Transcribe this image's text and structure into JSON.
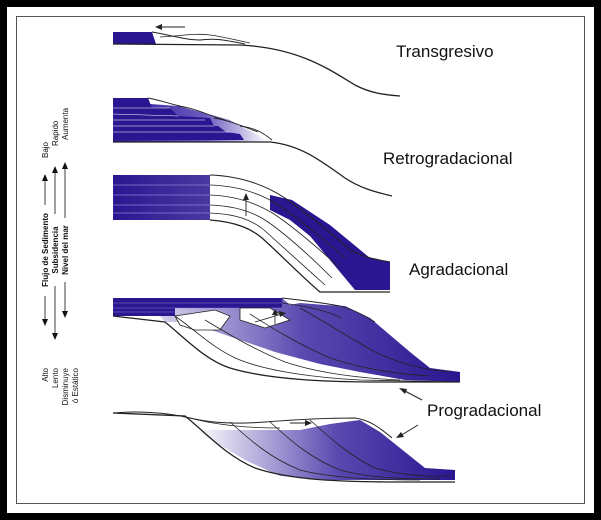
{
  "stage_labels": {
    "transgresivo": "Transgresivo",
    "retrogradacional": "Retrogradacional",
    "agradacional": "Agradacional",
    "progradacional": "Progradacional"
  },
  "side_legend": {
    "sediment_flow": "Flujo de Sedimento",
    "subsidence": "Subsidencia",
    "sea_level": "Nivel del mar",
    "low": "Bajo",
    "rapid": "Rapido",
    "rising": "Aumenta",
    "high": "Alto",
    "slow": "Lento",
    "falling": "Disminuye",
    "static": "ó Estático"
  },
  "colors": {
    "fill_dark": "#2a1690",
    "fill_light": "#ffffff",
    "line": "#222222",
    "frame": "#000000"
  }
}
